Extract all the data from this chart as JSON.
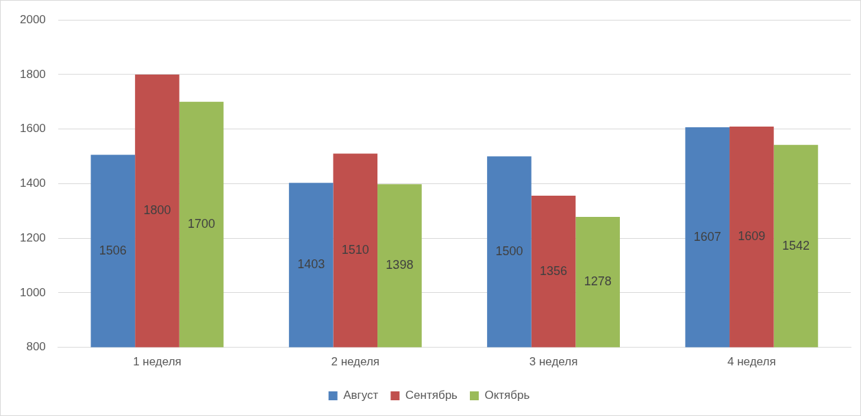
{
  "chart_data": {
    "type": "bar",
    "categories": [
      "1 неделя",
      "2 неделя",
      "3 неделя",
      "4 неделя"
    ],
    "series": [
      {
        "name": "Август",
        "color": "#4f81bd",
        "values": [
          1506,
          1403,
          1500,
          1607
        ]
      },
      {
        "name": "Сентябрь",
        "color": "#c0504d",
        "values": [
          1800,
          1510,
          1356,
          1609
        ]
      },
      {
        "name": "Октябрь",
        "color": "#9bbb59",
        "values": [
          1700,
          1398,
          1278,
          1542
        ]
      }
    ],
    "ylim": [
      800,
      2000
    ],
    "yticks": [
      800,
      1000,
      1200,
      1400,
      1600,
      1800,
      2000
    ],
    "grid": "y",
    "legend": "bottom",
    "data_labels": true
  }
}
